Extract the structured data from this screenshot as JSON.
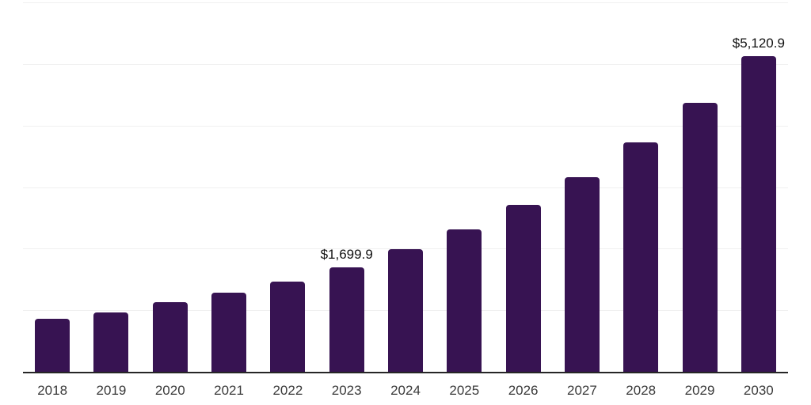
{
  "chart_data": {
    "type": "bar",
    "title": "",
    "xlabel": "",
    "ylabel": "",
    "categories": [
      "2018",
      "2019",
      "2020",
      "2021",
      "2022",
      "2023",
      "2024",
      "2025",
      "2026",
      "2027",
      "2028",
      "2029",
      "2030"
    ],
    "values": [
      855,
      970,
      1125,
      1280,
      1460,
      1699.9,
      1995,
      2310,
      2705,
      3165,
      3720,
      4370,
      5120.9
    ],
    "value_labels": {
      "2023": "$1,699.9",
      "2030": "$5,120.9"
    },
    "ylim": [
      0,
      6000
    ],
    "grid_step": 1000,
    "grid": "horizontal-only",
    "legend_position": "none",
    "colors": {
      "bar": "#371352",
      "grid": "#f0f0f0",
      "axis": "#262626",
      "tick_label": "#3a3a3a",
      "value_label": "#111111",
      "background": "#ffffff"
    }
  }
}
